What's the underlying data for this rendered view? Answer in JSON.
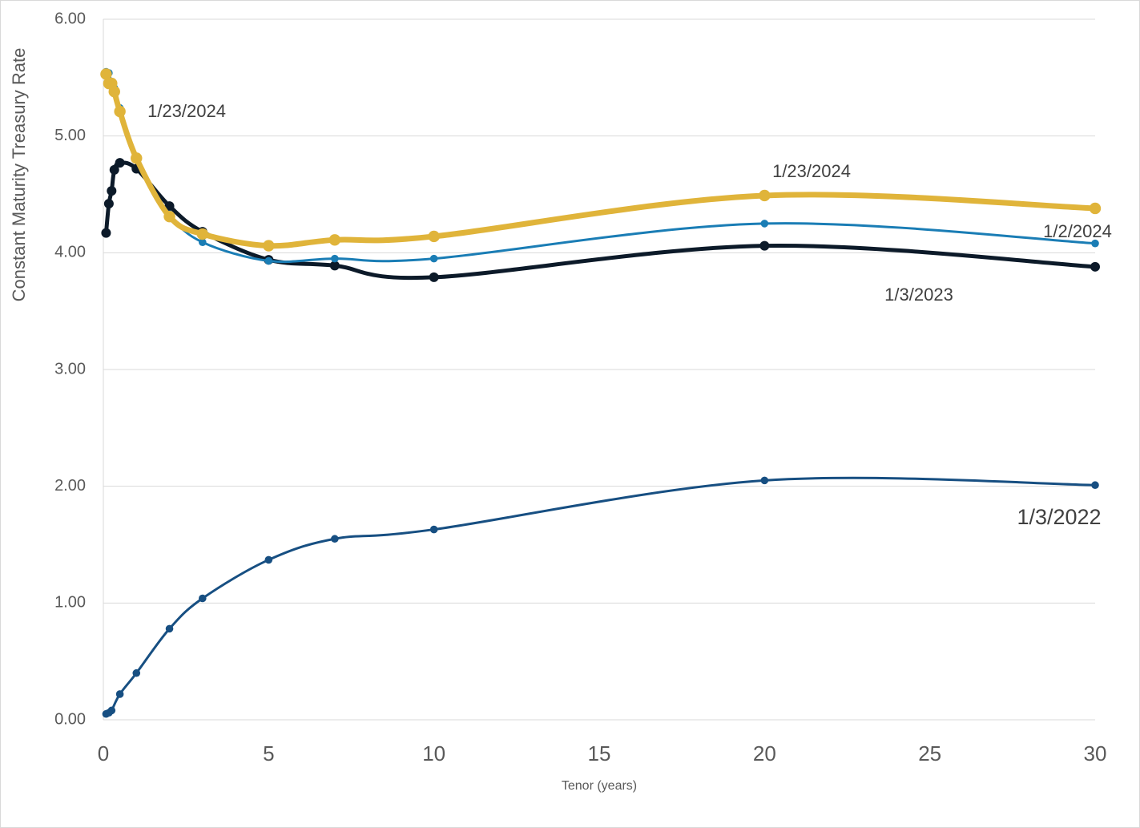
{
  "chart_data": {
    "type": "line",
    "x_label": "Tenor (years)",
    "y_label": "Constant Maturity Treasury Rate",
    "xlim": [
      0,
      30
    ],
    "xticks": [
      0,
      5,
      10,
      15,
      20,
      25,
      30
    ],
    "ylim": [
      0,
      6
    ],
    "yticks": [
      {
        "value": 0,
        "label": "0.00"
      },
      {
        "value": 1,
        "label": "1.00"
      },
      {
        "value": 2,
        "label": "2.00"
      },
      {
        "value": 3,
        "label": "3.00"
      },
      {
        "value": 4,
        "label": "4.00"
      },
      {
        "value": 5,
        "label": "5.00"
      },
      {
        "value": 6,
        "label": "6.00"
      }
    ],
    "grid": true,
    "smooth": true,
    "series": [
      {
        "name": "1/3/2022",
        "color": "#174f82",
        "width": 3,
        "x": [
          0.083,
          0.167,
          0.25,
          0.5,
          1,
          2,
          3,
          5,
          7,
          10,
          20,
          30
        ],
        "values": [
          0.05,
          0.06,
          0.08,
          0.22,
          0.4,
          0.78,
          1.04,
          1.37,
          1.55,
          1.63,
          2.05,
          2.01
        ]
      },
      {
        "name": "1/3/2023",
        "color": "#0c1a29",
        "width": 5,
        "x": [
          0.083,
          0.167,
          0.25,
          0.333,
          0.5,
          1,
          2,
          3,
          5,
          7,
          10,
          20,
          30
        ],
        "values": [
          4.17,
          4.42,
          4.53,
          4.71,
          4.77,
          4.72,
          4.4,
          4.18,
          3.94,
          3.89,
          3.79,
          4.06,
          3.88
        ]
      },
      {
        "name": "1/2/2024",
        "color": "#1a7db5",
        "width": 3,
        "x": [
          0.083,
          0.167,
          0.25,
          0.333,
          0.5,
          1,
          2,
          3,
          5,
          7,
          10,
          20,
          30
        ],
        "values": [
          5.55,
          5.54,
          5.46,
          5.41,
          5.24,
          4.8,
          4.33,
          4.09,
          3.93,
          3.95,
          3.95,
          4.25,
          4.08
        ]
      },
      {
        "name": "1/23/2024",
        "color": "#e0b43a",
        "width": 7,
        "x": [
          0.083,
          0.167,
          0.25,
          0.333,
          0.5,
          1,
          2,
          3,
          5,
          7,
          10,
          20,
          30
        ],
        "values": [
          5.53,
          5.45,
          5.45,
          5.38,
          5.21,
          4.81,
          4.31,
          4.16,
          4.06,
          4.11,
          4.14,
          4.49,
          4.38
        ]
      }
    ]
  }
}
